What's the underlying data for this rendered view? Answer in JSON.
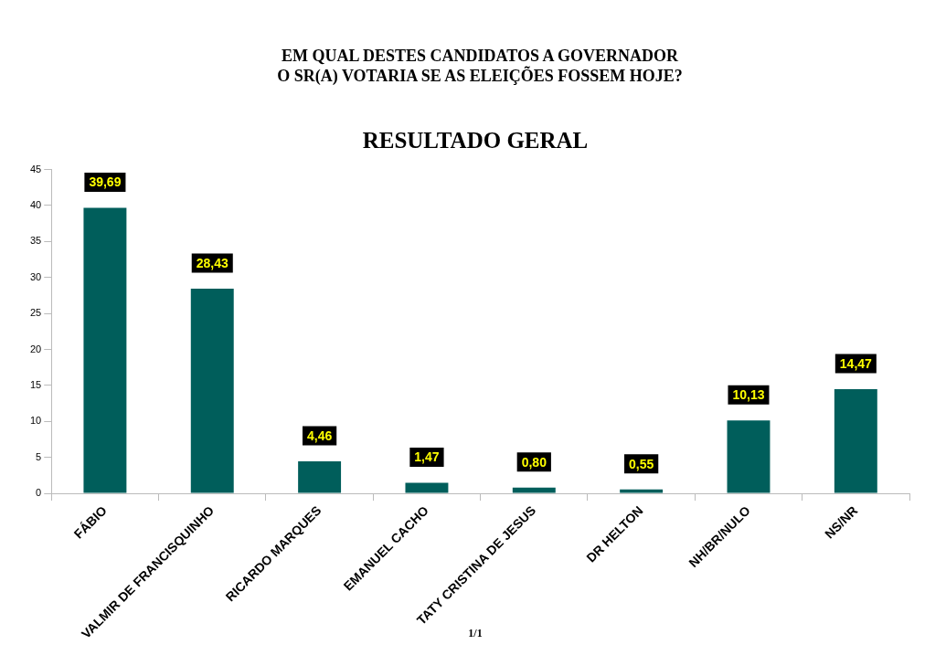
{
  "chart_data": {
    "type": "bar",
    "title": "EM QUAL DESTES CANDIDATOS A GOVERNADOR\nO SR(A) VOTARIA SE AS ELEIÇÕES FOSSEM HOJE?",
    "subtitle": "RESULTADO GERAL",
    "categories": [
      "FÁBIO",
      "VALMIR DE FRANCISQUINHO",
      "RICARDO MARQUES",
      "EMANUEL CACHO",
      "TATY CRISTINA DE JESUS",
      "DR HELTON",
      "NH/BR/NULO",
      "NS/NR"
    ],
    "values": [
      39.69,
      28.43,
      4.46,
      1.47,
      0.8,
      0.55,
      10.13,
      14.47
    ],
    "value_labels": [
      "39,69",
      "28,43",
      "4,46",
      "1,47",
      "0,80",
      "0,55",
      "10,13",
      "14,47"
    ],
    "color": "#005e5b",
    "ylim": [
      0,
      45
    ],
    "yticks": [
      0,
      5,
      10,
      15,
      20,
      25,
      30,
      35,
      40,
      45
    ],
    "annotations": [
      "1/1"
    ]
  }
}
